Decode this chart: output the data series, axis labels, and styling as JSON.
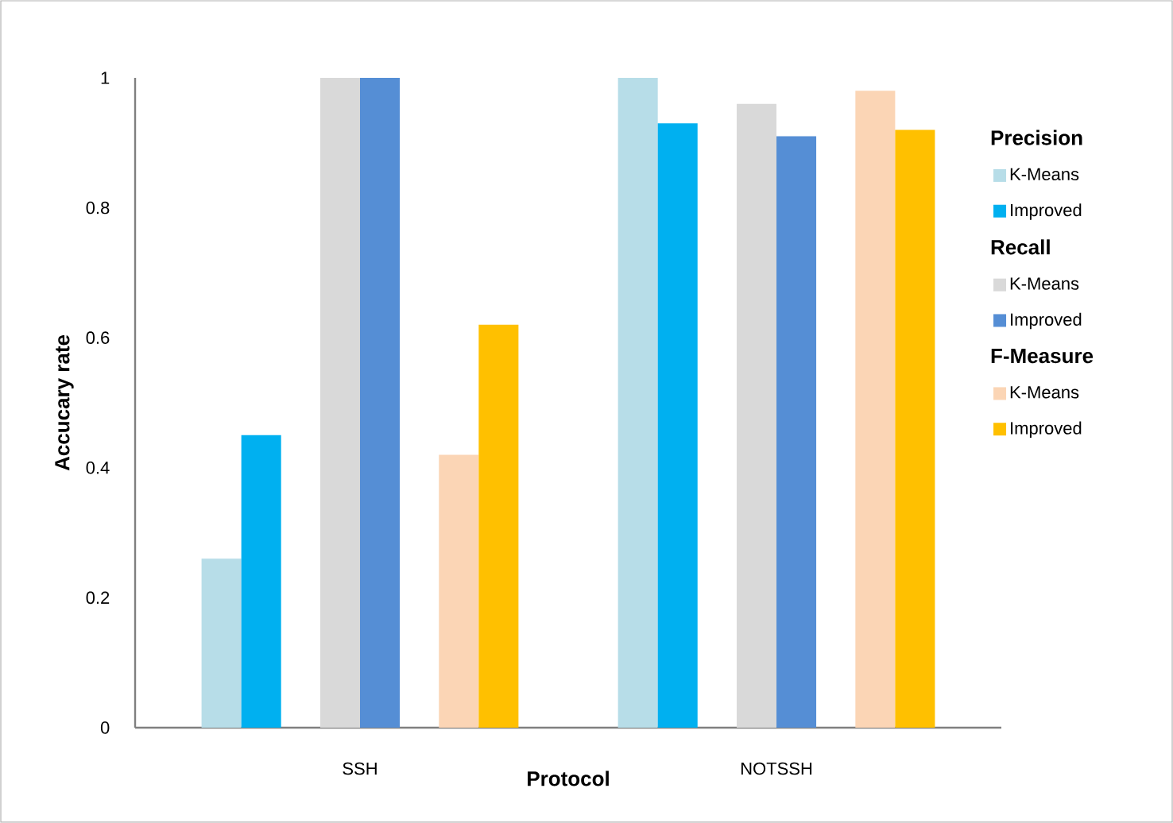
{
  "chart_data": {
    "type": "bar",
    "xlabel": "Protocol",
    "ylabel": "Accucary rate",
    "categories": [
      "SSH",
      "NOTSSH"
    ],
    "series": [
      {
        "name": "K-Means",
        "color": "#b7dde8",
        "values": [
          0.26,
          1.0
        ]
      },
      {
        "name": "Improved",
        "color": "#00b0f0",
        "values": [
          0.45,
          0.93
        ]
      },
      {
        "name": "K-Means",
        "color": "#d9d9d9",
        "values": [
          1.0,
          0.96
        ]
      },
      {
        "name": "Improved",
        "color": "#558ed5",
        "values": [
          1.0,
          0.91
        ]
      },
      {
        "name": "K-Means",
        "color": "#fbd5b5",
        "values": [
          0.42,
          0.98
        ]
      },
      {
        "name": "Improved",
        "color": "#ffc000",
        "values": [
          0.62,
          0.92
        ]
      }
    ],
    "annotations": [
      "Precision",
      "Recall",
      "F-Measure"
    ],
    "ylim": [
      0,
      1
    ],
    "yticks": [
      0,
      0.2,
      0.4,
      0.6,
      0.8,
      1
    ],
    "grid": false,
    "legend": "right"
  }
}
